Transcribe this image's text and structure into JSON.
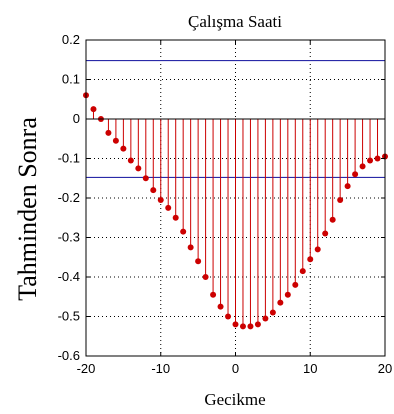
{
  "chart_data": {
    "type": "stem",
    "title": "Çalışma Saati",
    "xlabel": "Gecikme",
    "ylabel": "Tahminden Sonra",
    "xlim": [
      -20,
      20
    ],
    "ylim": [
      -0.6,
      0.2
    ],
    "xticks": [
      "-20",
      "-10",
      "0",
      "10",
      "20"
    ],
    "yticks": [
      "0.2",
      "0.1",
      "0",
      "-0.1",
      "-0.2",
      "-0.3",
      "-0.4",
      "-0.5",
      "-0.6"
    ],
    "grid": true,
    "confidence_bounds": [
      0.148,
      -0.148
    ],
    "colors": {
      "stem": "#cc0000",
      "marker": "#cc0000",
      "bounds": "#2a2aa8",
      "axis": "#000000",
      "grid": "#000000"
    },
    "x": [
      -20,
      -19,
      -18,
      -17,
      -16,
      -15,
      -14,
      -13,
      -12,
      -11,
      -10,
      -9,
      -8,
      -7,
      -6,
      -5,
      -4,
      -3,
      -2,
      -1,
      0,
      1,
      2,
      3,
      4,
      5,
      6,
      7,
      8,
      9,
      10,
      11,
      12,
      13,
      14,
      15,
      16,
      17,
      18,
      19,
      20
    ],
    "values": [
      0.06,
      0.025,
      0.0,
      -0.035,
      -0.055,
      -0.075,
      -0.105,
      -0.125,
      -0.15,
      -0.18,
      -0.205,
      -0.225,
      -0.25,
      -0.285,
      -0.325,
      -0.36,
      -0.4,
      -0.445,
      -0.475,
      -0.5,
      -0.52,
      -0.525,
      -0.525,
      -0.52,
      -0.505,
      -0.49,
      -0.465,
      -0.445,
      -0.42,
      -0.385,
      -0.355,
      -0.33,
      -0.29,
      -0.255,
      -0.205,
      -0.17,
      -0.14,
      -0.12,
      -0.105,
      -0.1,
      -0.095
    ]
  }
}
